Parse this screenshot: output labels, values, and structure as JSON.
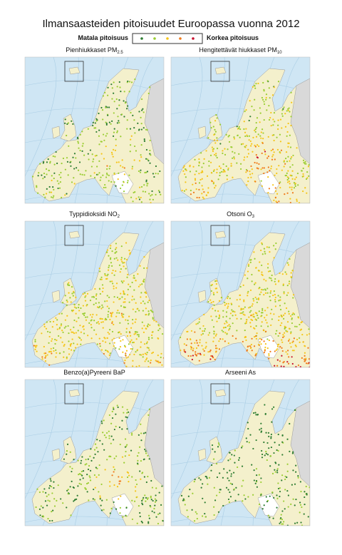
{
  "title": "Ilmansaasteiden pitoisuudet Euroopassa vuonna 2012",
  "legend": {
    "low": "Matala pitoisuus",
    "high": "Korkea pitoisuus"
  },
  "panels": [
    {
      "title": "Pienhiukkaset PM",
      "subscript": "2.5"
    },
    {
      "title": "Hengitettävät hiukkaset PM",
      "subscript": "10"
    },
    {
      "title": "Typpidioksidi NO",
      "subscript": "2"
    },
    {
      "title": "Otsoni O",
      "subscript": "3"
    },
    {
      "title": "Benzo(a)Pyreeni BaP"
    },
    {
      "title": "Arseeni  As"
    }
  ]
}
